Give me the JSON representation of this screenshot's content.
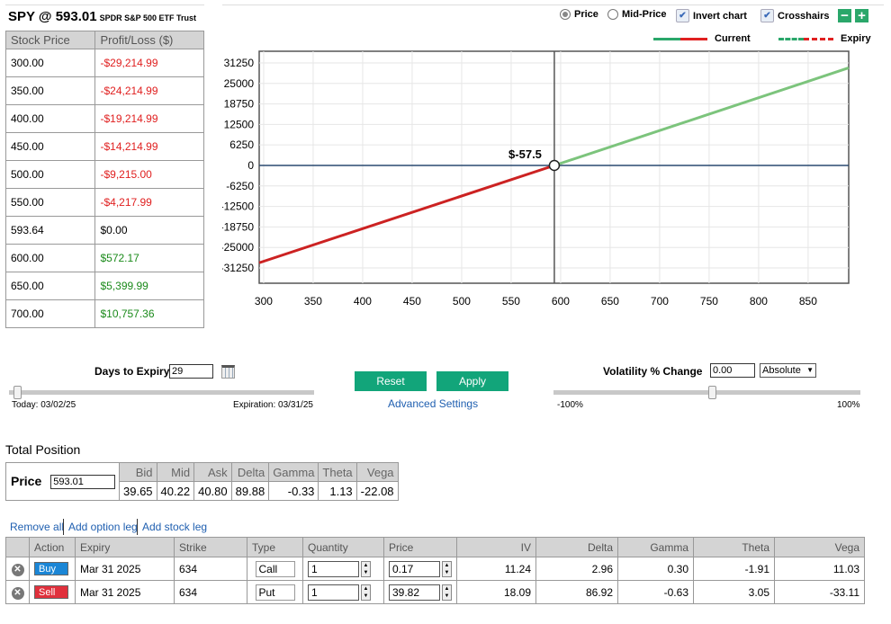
{
  "header": {
    "symbol_price": "SPY @ 593.01",
    "name": "SPDR S&P 500 ETF Trust"
  },
  "pl_table": {
    "headers": [
      "Stock Price",
      "Profit/Loss ($)"
    ],
    "rows": [
      [
        "300.00",
        "-$29,214.99"
      ],
      [
        "350.00",
        "-$24,214.99"
      ],
      [
        "400.00",
        "-$19,214.99"
      ],
      [
        "450.00",
        "-$14,214.99"
      ],
      [
        "500.00",
        "-$9,215.00"
      ],
      [
        "550.00",
        "-$4,217.99"
      ],
      [
        "593.64",
        "$0.00"
      ],
      [
        "600.00",
        "$572.17"
      ],
      [
        "650.00",
        "$5,399.99"
      ],
      [
        "700.00",
        "$10,757.36"
      ]
    ]
  },
  "chart_controls": {
    "price": "Price",
    "mid_price": "Mid-Price",
    "invert": "Invert chart",
    "crosshairs": "Crosshairs",
    "zoom_out": "−",
    "zoom_in": "+",
    "legend_current": "Current",
    "legend_expiry": "Expiry",
    "price_selected": true,
    "invert_checked": true,
    "crosshairs_checked": true
  },
  "chart_data": {
    "type": "line",
    "title": "",
    "xlabel": "",
    "ylabel": "",
    "x_ticks": [
      300,
      350,
      400,
      450,
      500,
      550,
      600,
      650,
      700,
      750,
      800,
      850
    ],
    "y_ticks": [
      31250,
      25000,
      18750,
      12500,
      6250,
      0,
      -6250,
      -12500,
      -18750,
      -25000,
      -31250
    ],
    "xlim": [
      295.5,
      891
    ],
    "ylim": [
      -35900,
      34800
    ],
    "series": [
      {
        "name": "Current",
        "points": [
          [
            295.5,
            -29665
          ],
          [
            593.64,
            0
          ],
          [
            891,
            29736
          ]
        ],
        "colors": {
          "loss": "#cc2222",
          "profit": "#7cc47c"
        }
      }
    ],
    "breakeven": {
      "x": 593.64,
      "y": 0,
      "label": "$-57.5"
    },
    "grid": true
  },
  "expiry": {
    "label": "Days to Expiry",
    "days": "29",
    "today": "Today: 03/02/25",
    "expiration": "Expiration: 03/31/25",
    "slider_fraction": 0.0
  },
  "buttons": {
    "reset": "Reset",
    "apply": "Apply",
    "advanced": "Advanced Settings"
  },
  "volatility": {
    "label": "Volatility % Change",
    "value": "0.00",
    "mode": "Absolute",
    "min": "-100%",
    "max": "100%",
    "slider_fraction": 0.5
  },
  "total": {
    "title": "Total Position",
    "price_label": "Price",
    "price": "593.01",
    "headers": [
      "Bid",
      "Mid",
      "Ask",
      "Delta",
      "Gamma",
      "Theta",
      "Vega"
    ],
    "values": [
      "39.65",
      "40.22",
      "40.80",
      "89.88",
      "-0.33",
      "1.13",
      "-22.08"
    ]
  },
  "leg_links": {
    "remove_all": "Remove all",
    "add_option": "Add option leg",
    "add_stock": "Add stock leg"
  },
  "legs": {
    "headers": [
      "",
      "Action",
      "Expiry",
      "Strike",
      "Type",
      "Quantity",
      "Price",
      "IV",
      "Delta",
      "Gamma",
      "Theta",
      "Vega"
    ],
    "rows": [
      {
        "action": "Buy",
        "expiry": "Mar 31 2025",
        "strike": "634",
        "type": "Call",
        "qty": "1",
        "price": "0.17",
        "iv": "11.24",
        "delta": "2.96",
        "gamma": "0.30",
        "theta": "-1.91",
        "vega": "11.03"
      },
      {
        "action": "Sell",
        "expiry": "Mar 31 2025",
        "strike": "634",
        "type": "Put",
        "qty": "1",
        "price": "39.82",
        "iv": "18.09",
        "delta": "86.92",
        "gamma": "-0.63",
        "theta": "3.05",
        "vega": "-33.11"
      }
    ]
  },
  "colors": {
    "accent": "#12a57a",
    "buy": "#1b86d6",
    "sell": "#e0303c"
  }
}
